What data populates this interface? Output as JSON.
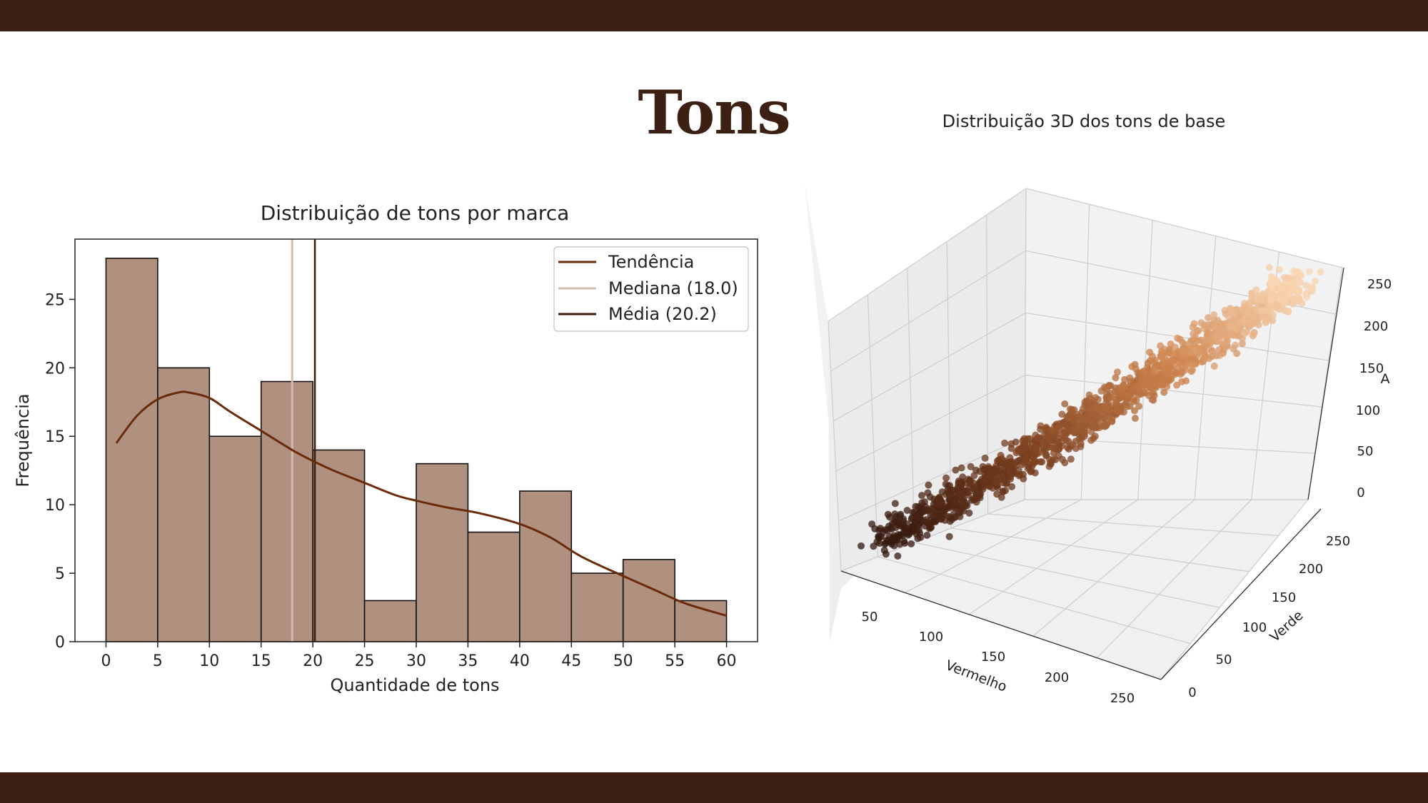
{
  "slide": {
    "title": "Tons"
  },
  "colors": {
    "band": "#3b2013",
    "bar_fill": "#b09180",
    "trend": "#6b2a0a",
    "median": "#d3bcae",
    "mean": "#3b1a0a"
  },
  "chart_data": [
    {
      "type": "bar",
      "title": "Distribuição de tons por marca",
      "xlabel": "Quantidade de tons",
      "ylabel": "Frequência",
      "bin_edges": [
        0,
        5,
        10,
        15,
        20,
        25,
        30,
        35,
        40,
        45,
        50,
        55,
        60
      ],
      "values": [
        28,
        20,
        15,
        19,
        14,
        3,
        13,
        8,
        11,
        5,
        6,
        3
      ],
      "xticks": [
        "0",
        "5",
        "10",
        "15",
        "20",
        "25",
        "30",
        "35",
        "40",
        "45",
        "50",
        "55",
        "60"
      ],
      "yticks": [
        "0",
        "5",
        "10",
        "15",
        "20",
        "25"
      ],
      "xlim": [
        -3,
        63
      ],
      "ylim": [
        0,
        29.4
      ],
      "trend": {
        "x": [
          1,
          3,
          5,
          7,
          8,
          10,
          12,
          15,
          18,
          20,
          22,
          25,
          28,
          30,
          33,
          36,
          40,
          43,
          46,
          50,
          53,
          56,
          60
        ],
        "y": [
          14.5,
          16.5,
          17.7,
          18.2,
          18.2,
          17.8,
          16.8,
          15.4,
          14.0,
          13.2,
          12.5,
          11.6,
          10.7,
          10.3,
          9.8,
          9.4,
          8.6,
          7.6,
          6.2,
          4.8,
          3.8,
          2.8,
          1.9
        ]
      },
      "median": 18.0,
      "mean": 20.2,
      "legend": {
        "position": "top-right",
        "entries": [
          "Tendência",
          "Mediana (18.0)",
          "Média (20.2)"
        ]
      }
    },
    {
      "type": "scatter",
      "title": "Distribuição 3D dos tons de base",
      "xlabel": "Vermelho",
      "ylabel": "Verde",
      "zlabel": "A",
      "x_ticks": [
        "50",
        "100",
        "150",
        "200",
        "250"
      ],
      "y_ticks": [
        "0",
        "50",
        "100",
        "150",
        "200",
        "250"
      ],
      "z_ticks": [
        "0",
        "50",
        "100",
        "150",
        "200",
        "250"
      ]
    }
  ]
}
